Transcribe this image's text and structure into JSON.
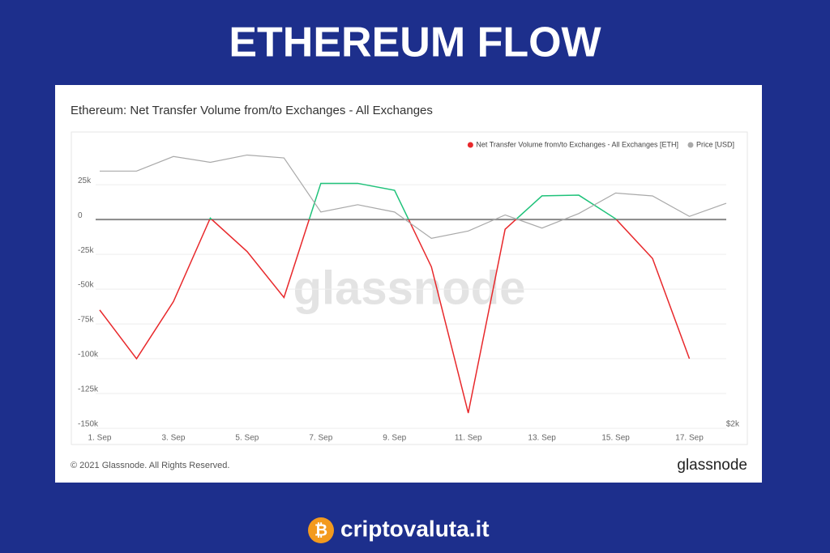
{
  "header": "ETHEREUM FLOW",
  "chart_data": {
    "type": "line",
    "title": "Ethereum: Net Transfer Volume from/to Exchanges - All Exchanges",
    "watermark": "glassnode",
    "categories": [
      "1. Sep",
      null,
      "3. Sep",
      null,
      "5. Sep",
      null,
      "7. Sep",
      null,
      "9. Sep",
      null,
      "11. Sep",
      null,
      "13. Sep",
      null,
      "15. Sep",
      null,
      "17. Sep",
      null
    ],
    "series": [
      {
        "name": "Net Transfer Volume from/to Exchanges - All Exchanges [ETH]",
        "color": "#e8282b",
        "positive_color": "#1fc27a",
        "values": [
          -65000,
          -100000,
          -59000,
          1000,
          -23000,
          -56000,
          26000,
          26000,
          21000,
          -34000,
          -139000,
          -7000,
          17000,
          17500,
          500,
          -28000,
          -100000,
          null
        ]
      },
      {
        "name": "Price [USD]",
        "color": "#a9a9a9",
        "axis": "y2",
        "values": [
          3760,
          3760,
          3860,
          3820,
          3870,
          3850,
          3480,
          3530,
          3480,
          3300,
          3350,
          3460,
          3370,
          3470,
          3610,
          3590,
          3450,
          3540
        ]
      }
    ],
    "ylim": [
      -150000,
      60000
    ],
    "yticks": [
      {
        "value": -150000,
        "label": "-150k"
      },
      {
        "value": -125000,
        "label": "-125k"
      },
      {
        "value": -100000,
        "label": "-100k"
      },
      {
        "value": -75000,
        "label": "-75k"
      },
      {
        "value": -50000,
        "label": "-50k"
      },
      {
        "value": -25000,
        "label": "-25k"
      },
      0,
      {
        "value": 25000,
        "label": "25k"
      }
    ],
    "y2lim": [
      2000,
      4000
    ],
    "y2ticks": [
      {
        "value": 2000,
        "label": "$2k"
      }
    ],
    "grid": true,
    "legend": "top-right"
  },
  "footer": {
    "copyright": "© 2021 Glassnode. All Rights Reserved.",
    "logo": "glassnode"
  },
  "brand": "criptovaluta.it"
}
